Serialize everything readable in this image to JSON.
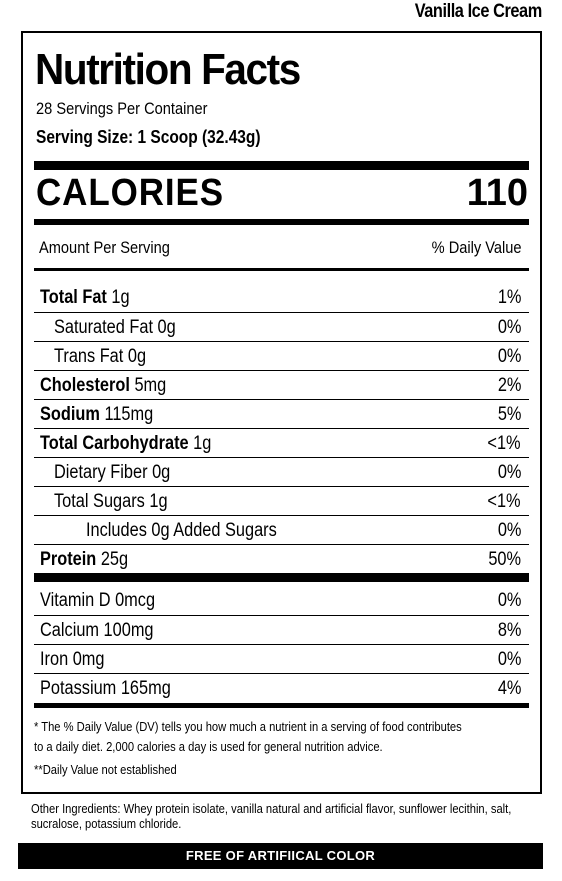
{
  "flavor": "Vanilla Ice Cream",
  "title": "Nutrition Facts",
  "servings": "28 Servings Per Container",
  "serving_size": "Serving Size: 1 Scoop (32.43g)",
  "calories": {
    "label": "CALORIES",
    "value": "110"
  },
  "header": {
    "amount": "Amount Per Serving",
    "dv": "% Daily Value"
  },
  "nutrients": [
    {
      "name": "Total Fat",
      "amount": "1g",
      "dv": "1%",
      "bold": true,
      "indent": 0
    },
    {
      "name": "Saturated Fat",
      "amount": "0g",
      "dv": "0%",
      "bold": false,
      "indent": 1
    },
    {
      "name": "Trans Fat",
      "amount": "0g",
      "dv": "0%",
      "bold": false,
      "indent": 1
    },
    {
      "name": "Cholesterol",
      "amount": "5mg",
      "dv": "2%",
      "bold": true,
      "indent": 0
    },
    {
      "name": "Sodium",
      "amount": "115mg",
      "dv": "5%",
      "bold": true,
      "indent": 0
    },
    {
      "name": "Total Carbohydrate",
      "amount": "1g",
      "dv": "<1%",
      "bold": true,
      "indent": 0
    },
    {
      "name": "Dietary Fiber",
      "amount": "0g",
      "dv": "0%",
      "bold": false,
      "indent": 1
    },
    {
      "name": "Total Sugars",
      "amount": "1g",
      "dv": "<1%",
      "bold": false,
      "indent": 1
    },
    {
      "name": "Includes 0g Added Sugars",
      "amount": "",
      "dv": "0%",
      "bold": false,
      "indent": 2
    },
    {
      "name": "Protein",
      "amount": "25g",
      "dv": "50%",
      "bold": true,
      "indent": 0
    }
  ],
  "vitamins": [
    {
      "name": "Vitamin D",
      "amount": "0mcg",
      "dv": "0%"
    },
    {
      "name": "Calcium",
      "amount": "100mg",
      "dv": "8%"
    },
    {
      "name": "Iron",
      "amount": "0mg",
      "dv": "0%"
    },
    {
      "name": "Potassium",
      "amount": "165mg",
      "dv": "4%"
    }
  ],
  "footnote": "* The % Daily Value (DV) tells you how much a nutrient in a serving of food contributes to a daily diet. 2,000 calories a day is used for general nutrition advice.",
  "footnote2": "**Daily Value not established",
  "ingredients": "Other Ingredients: Whey protein isolate, vanilla natural and artificial flavor, sunflower lecithin, salt, sucralose, potassium chloride.",
  "banner": "FREE OF ARTIFIICAL COLOR"
}
